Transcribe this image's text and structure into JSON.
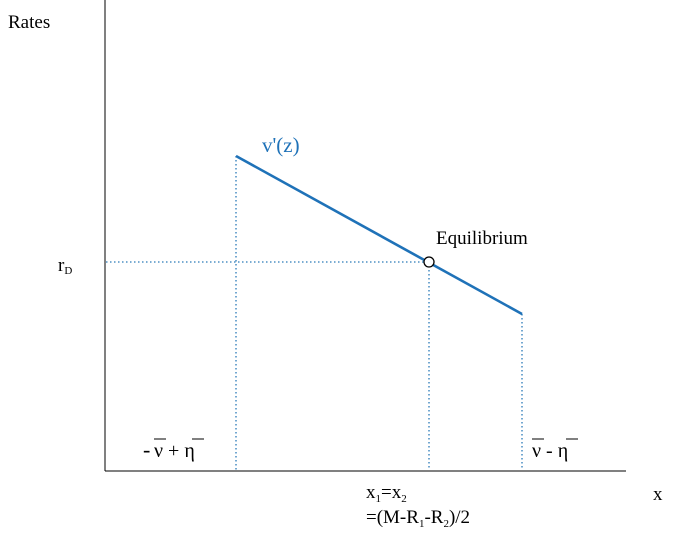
{
  "diagram": {
    "y_axis_title": "Rates",
    "x_axis_title": "x",
    "curve_label": "v'(z)",
    "equilibrium_label": "Equilibrium",
    "rate_label": {
      "main": "r",
      "sub": "D"
    },
    "left_bound_label": {
      "minus": "-",
      "nu": "ν",
      "op": " + ",
      "eta": "η"
    },
    "right_bound_label": {
      "nu": "ν",
      "op": " - ",
      "eta": "η"
    },
    "equilibrium_x_label": {
      "line1_main": "x",
      "line1_sub1": "1",
      "line1_eq": "=x",
      "line1_sub2": "2",
      "line2_a": "=(M-R",
      "line2_sub1": "1",
      "line2_b": "-R",
      "line2_sub2": "2",
      "line2_c": ")/2"
    }
  },
  "colors": {
    "curve": "#1f72b8",
    "guides": "#2a7ab8",
    "axes": "#000000",
    "text": "#000000"
  }
}
